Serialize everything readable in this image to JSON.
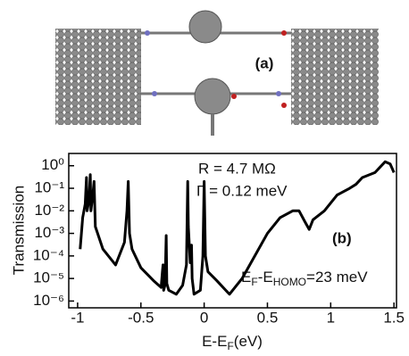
{
  "panel_a_label": "(a)",
  "chart_data": {
    "type": "line",
    "y_label": "Transmission",
    "x_label": [
      "E-E",
      "F",
      "(eV)"
    ],
    "annotations": {
      "resistance": "R = 4.7 MΩ",
      "gamma": "Γ = 0.12 meV",
      "panel": "(b)",
      "offset": [
        "E",
        "F",
        "-E",
        "HOMO",
        "=23 meV"
      ]
    },
    "x": [
      -0.98,
      -0.96,
      -0.94,
      -0.93,
      -0.925,
      -0.91,
      -0.9,
      -0.895,
      -0.88,
      -0.87,
      -0.86,
      -0.8,
      -0.7,
      -0.63,
      -0.61,
      -0.6,
      -0.59,
      -0.57,
      -0.5,
      -0.4,
      -0.34,
      -0.33,
      -0.325,
      -0.32,
      -0.31,
      -0.305,
      -0.3,
      -0.295,
      -0.28,
      -0.22,
      -0.17,
      -0.14,
      -0.13,
      -0.125,
      -0.11,
      -0.1,
      -0.095,
      -0.08,
      -0.03,
      -0.01,
      0,
      0.01,
      0.03,
      0.1,
      0.2,
      0.3,
      0.4,
      0.5,
      0.6,
      0.7,
      0.75,
      0.8,
      0.83,
      0.86,
      0.95,
      1.05,
      1.15,
      1.2,
      1.25,
      1.35,
      1.43,
      1.47,
      1.5
    ],
    "values": [
      0.0002,
      0.005,
      0.02,
      0.3,
      0.01,
      0.03,
      0.4,
      0.01,
      0.05,
      0.2,
      0.002,
      0.0002,
      4e-05,
      0.0004,
      0.01,
      0.2,
      0.001,
      0.0002,
      3e-05,
      8e-06,
      4e-06,
      2e-05,
      4e-05,
      3e-06,
      5e-06,
      5e-05,
      0.0008,
      6e-06,
      3e-06,
      2e-06,
      5e-06,
      4e-05,
      0.2,
      0.002,
      5e-05,
      0.0003,
      1e-05,
      2e-06,
      3e-06,
      0.0001,
      0.2,
      0.0001,
      2e-05,
      8e-06,
      2e-06,
      1e-05,
      0.0001,
      0.001,
      0.005,
      0.01,
      0.01,
      0.003,
      0.0015,
      0.004,
      0.01,
      0.05,
      0.1,
      0.15,
      0.3,
      0.5,
      1.5,
      1.2,
      0.5
    ],
    "color": "#000000",
    "xlim": [
      -1.07,
      1.52
    ],
    "xticks": [
      -1,
      -0.5,
      0,
      0.5,
      1,
      1.5
    ],
    "ylim": [
      5e-07,
      3.5
    ],
    "yscale": "log",
    "yticks": [
      {
        "value": 1,
        "label": "10⁰"
      },
      {
        "value": 0.1,
        "label": "10⁻¹"
      },
      {
        "value": 0.01,
        "label": "10⁻²"
      },
      {
        "value": 0.001,
        "label": "10⁻³"
      },
      {
        "value": 0.0001,
        "label": "10⁻⁴"
      },
      {
        "value": 1e-05,
        "label": "10⁻⁵"
      },
      {
        "value": 1e-06,
        "label": "10⁻⁶"
      }
    ],
    "grid": false
  }
}
